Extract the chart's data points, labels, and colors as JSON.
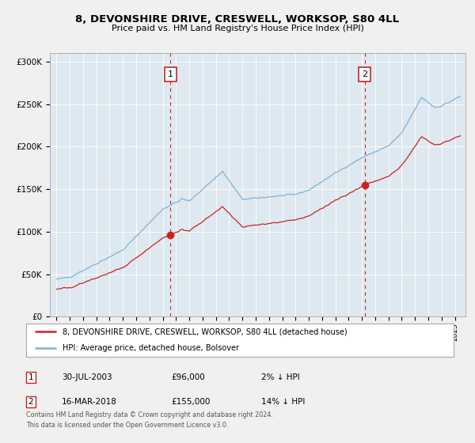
{
  "title": "8, DEVONSHIRE DRIVE, CRESWELL, WORKSOP, S80 4LL",
  "subtitle": "Price paid vs. HM Land Registry's House Price Index (HPI)",
  "legend_line1": "8, DEVONSHIRE DRIVE, CRESWELL, WORKSOP, S80 4LL (detached house)",
  "legend_line2": "HPI: Average price, detached house, Bolsover",
  "sale1_date": "30-JUL-2003",
  "sale1_price": "£96,000",
  "sale1_note": "2% ↓ HPI",
  "sale2_date": "16-MAR-2018",
  "sale2_price": "£155,000",
  "sale2_note": "14% ↓ HPI",
  "footer_line1": "Contains HM Land Registry data © Crown copyright and database right 2024.",
  "footer_line2": "This data is licensed under the Open Government Licence v3.0.",
  "hpi_color": "#7fb2d8",
  "price_color": "#cc2222",
  "marker_color": "#cc2222",
  "sale1_year": 2003.58,
  "sale1_price_val": 96000,
  "sale2_year": 2018.21,
  "sale2_price_val": 155000,
  "plot_bg": "#dde8f0",
  "fig_bg": "#f0f0f0",
  "ylim_min": 0,
  "ylim_max": 310000,
  "xlim_min": 1994.5,
  "xlim_max": 2025.8
}
